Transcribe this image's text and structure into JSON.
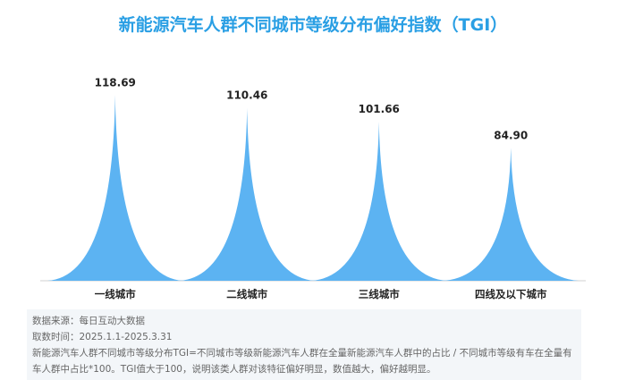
{
  "chart_data": {
    "type": "bar",
    "title": "新能源汽车人群不同城市等级分布偏好指数（TGI）",
    "categories": [
      "一线城市",
      "二线城市",
      "三线城市",
      "四线及以下城市"
    ],
    "values": [
      118.69,
      110.46,
      101.66,
      84.9
    ],
    "value_labels": [
      "118.69",
      "110.46",
      "101.66",
      "84.90"
    ],
    "color": "#5cb3f2"
  },
  "footer": {
    "source": "数据来源：每日互动大数据",
    "period": "取数时间：2025.1.1-2025.3.31",
    "note": "新能源汽车人群不同城市等级分布TGI=不同城市等级新能源汽车人群在全量新能源汽车人群中的占比  / 不同城市等级有车在全量有车人群中占比*100。TGI值大于100，说明该类人群对该特征偏好明显，数值越大，偏好越明显。"
  }
}
